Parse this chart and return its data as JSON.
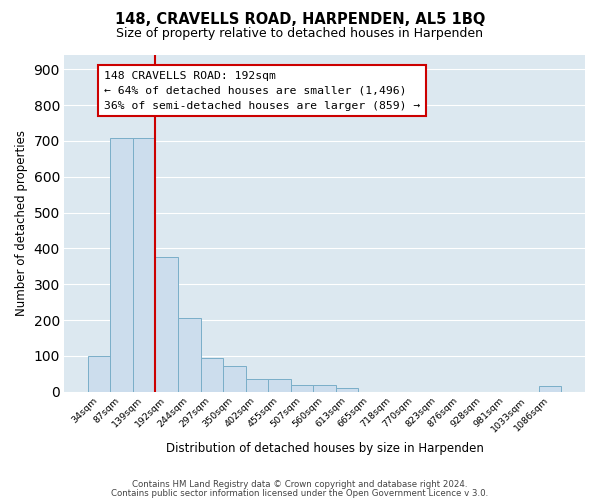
{
  "title": "148, CRAVELLS ROAD, HARPENDEN, AL5 1BQ",
  "subtitle": "Size of property relative to detached houses in Harpenden",
  "xlabel": "Distribution of detached houses by size in Harpenden",
  "ylabel": "Number of detached properties",
  "bin_labels": [
    "34sqm",
    "87sqm",
    "139sqm",
    "192sqm",
    "244sqm",
    "297sqm",
    "350sqm",
    "402sqm",
    "455sqm",
    "507sqm",
    "560sqm",
    "613sqm",
    "665sqm",
    "718sqm",
    "770sqm",
    "823sqm",
    "876sqm",
    "928sqm",
    "981sqm",
    "1033sqm",
    "1086sqm"
  ],
  "bar_heights": [
    100,
    707,
    707,
    375,
    207,
    95,
    72,
    35,
    35,
    20,
    20,
    10,
    0,
    0,
    0,
    0,
    0,
    0,
    0,
    0,
    15
  ],
  "bar_color": "#ccdded",
  "bar_edge_color": "#7aaec8",
  "vline_color": "#cc0000",
  "annotation_title": "148 CRAVELLS ROAD: 192sqm",
  "annotation_line1": "← 64% of detached houses are smaller (1,496)",
  "annotation_line2": "36% of semi-detached houses are larger (859) →",
  "annotation_box_color": "#ffffff",
  "annotation_box_edge": "#cc0000",
  "ylim": [
    0,
    940
  ],
  "yticks": [
    0,
    100,
    200,
    300,
    400,
    500,
    600,
    700,
    800,
    900
  ],
  "footer1": "Contains HM Land Registry data © Crown copyright and database right 2024.",
  "footer2": "Contains public sector information licensed under the Open Government Licence v 3.0.",
  "bg_color": "#ffffff",
  "grid_color": "#dce8f0"
}
